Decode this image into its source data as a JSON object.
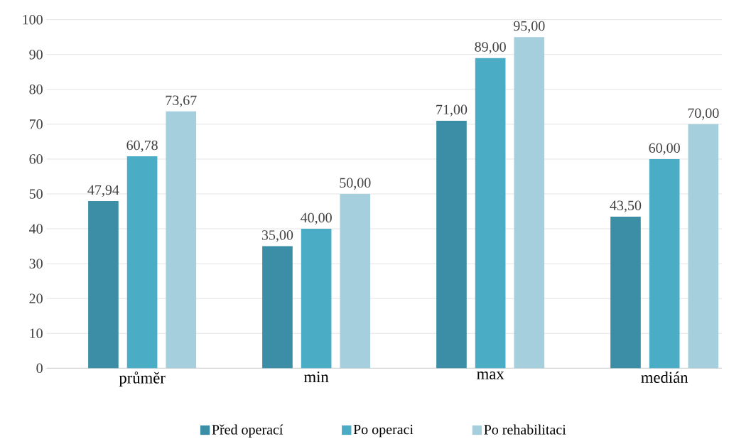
{
  "chart_data": {
    "type": "bar",
    "categories": [
      "průměr",
      "min",
      "max",
      "medián"
    ],
    "series": [
      {
        "name": "Před operací",
        "color": "#3b8ea5",
        "values": [
          47.94,
          35,
          71,
          43.5
        ],
        "value_labels": [
          "47,94",
          "35,00",
          "71,00",
          "43,50"
        ]
      },
      {
        "name": "Po operaci",
        "color": "#4bacc6",
        "values": [
          60.78,
          40,
          89,
          60
        ],
        "value_labels": [
          "60,78",
          "40,00",
          "89,00",
          "60,00"
        ]
      },
      {
        "name": "Po rehabilitaci",
        "color": "#a5cfdc",
        "values": [
          73.67,
          50,
          95,
          70
        ],
        "value_labels": [
          "73,67",
          "50,00",
          "95,00",
          "70,00"
        ]
      }
    ],
    "ylim": [
      0,
      100
    ],
    "yticks": [
      0,
      10,
      20,
      30,
      40,
      50,
      60,
      70,
      80,
      90,
      100
    ],
    "grid": "y",
    "legend": "bottom"
  }
}
